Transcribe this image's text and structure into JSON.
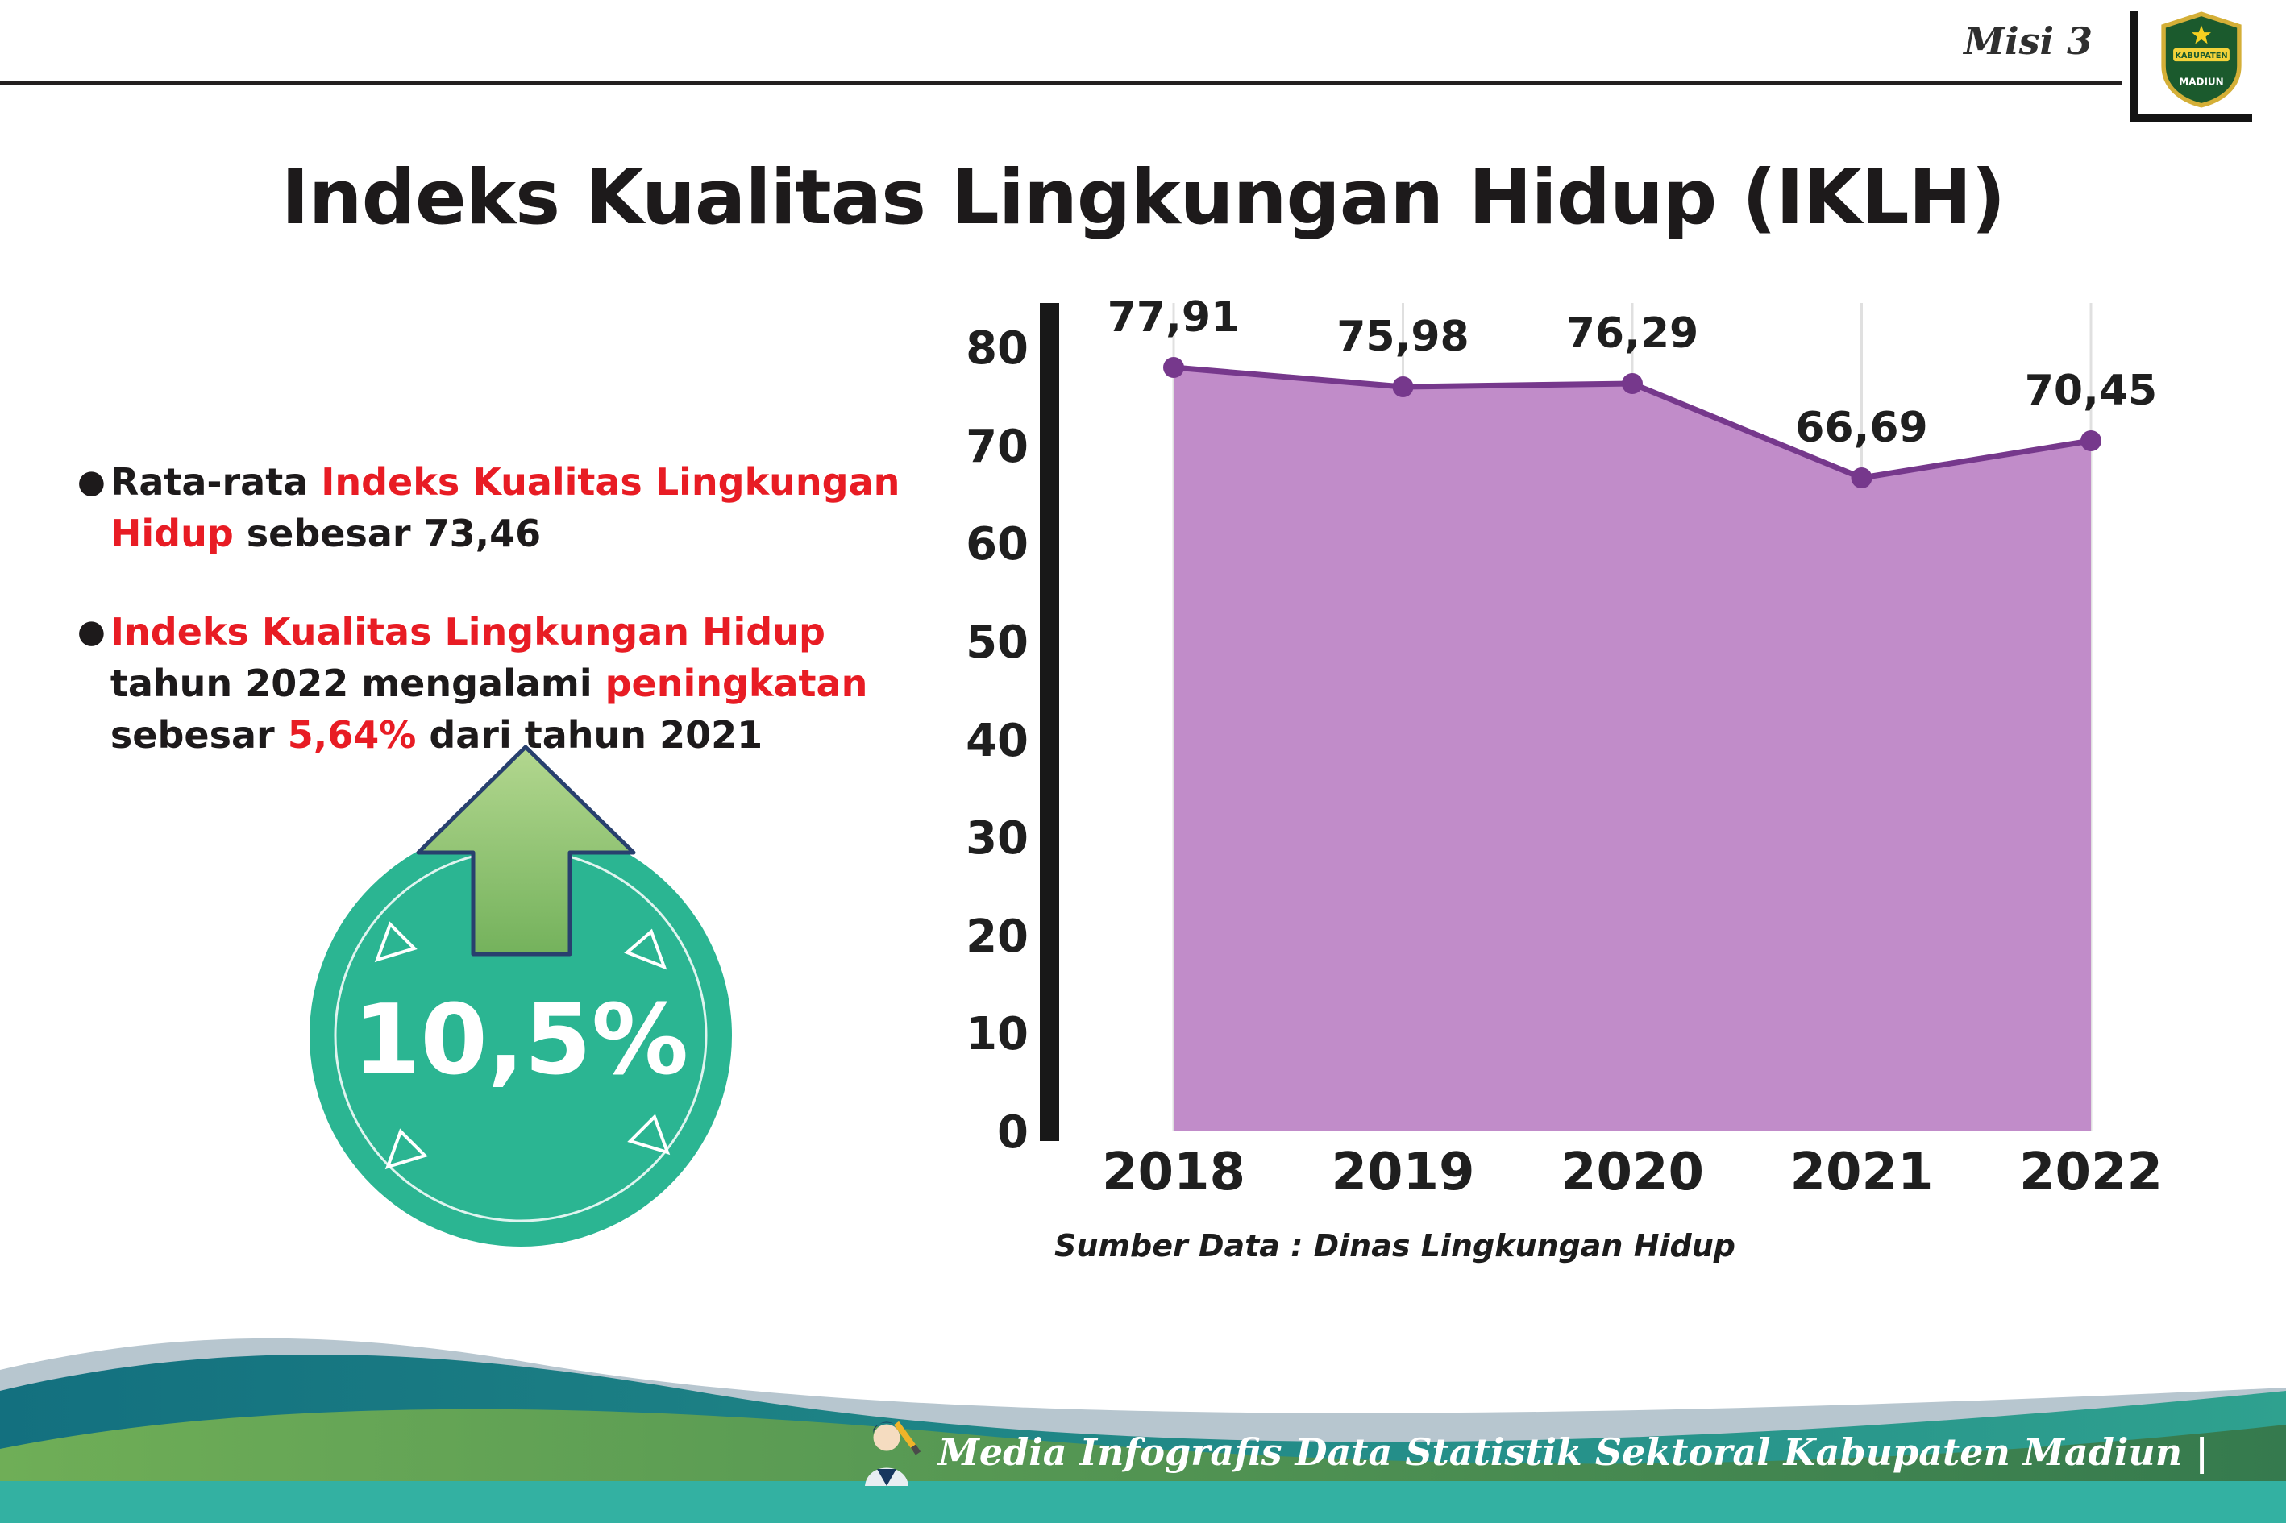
{
  "header": {
    "misi_label": "Misi 3",
    "title": "Indeks Kualitas Lingkungan Hidup (IKLH)"
  },
  "logo": {
    "top_text": "KABUPATEN",
    "bottom_text": "MADIUN"
  },
  "bullets": {
    "avg": {
      "pre": "Rata-rata ",
      "highlight": "Indeks Kualitas Lingkungan Hidup",
      "post": " sebesar 73,46"
    },
    "change": {
      "h1": "Indeks Kualitas Lingkungan Hidup",
      "t1": " tahun 2022 mengalami ",
      "h2": "peningkatan",
      "t2": " sebesar ",
      "h3": "5,64%",
      "t3": " dari tahun 2021"
    }
  },
  "badge": {
    "value": "10,5%",
    "circle_color": "#2bb592",
    "arrow_color": "#8dc371"
  },
  "chart_data": {
    "type": "area",
    "title": "Indeks Kualitas Lingkungan Hidup (IKLH)",
    "categories": [
      "2018",
      "2019",
      "2020",
      "2021",
      "2022"
    ],
    "values": [
      77.91,
      75.98,
      76.29,
      66.69,
      70.45
    ],
    "point_labels": [
      "77,91",
      "75,98",
      "76,29",
      "66,69",
      "70,45"
    ],
    "ylim": [
      0,
      80
    ],
    "yticks": [
      0,
      10,
      20,
      30,
      40,
      50,
      60,
      70,
      80
    ],
    "grid": "vertical-light",
    "legend": "none",
    "fill_color": "#c18cc9",
    "line_color": "#76388c",
    "source": "Sumber Data : Dinas Lingkungan Hidup"
  },
  "footer": {
    "text": "Media Infografis Data Statistik Sektoral Kabupaten Madiun |"
  }
}
